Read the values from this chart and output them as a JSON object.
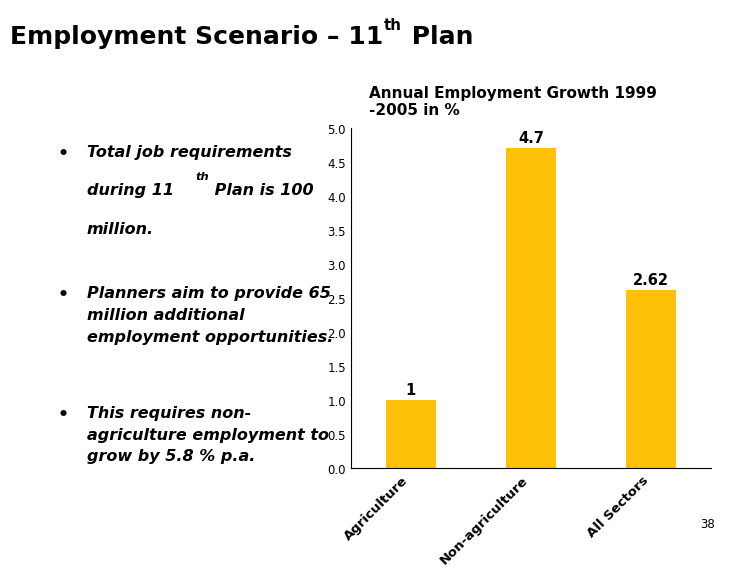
{
  "background_color": "#ffffff",
  "title_main": "Employment Scenario – 11",
  "title_sup": "th",
  "title_end": " Plan",
  "bar_categories": [
    "Agriculture",
    "Non-agriculture",
    "All Sectors"
  ],
  "bar_values": [
    1.0,
    4.7,
    2.62
  ],
  "bar_color": "#FFC107",
  "bar_labels": [
    "1",
    "4.7",
    "2.62"
  ],
  "chart_title_line1": "Annual Employment Growth 1999",
  "chart_title_line2": "-2005 in %",
  "ylim": [
    0,
    5
  ],
  "yticks": [
    0,
    0.5,
    1,
    1.5,
    2,
    2.5,
    3,
    3.5,
    4,
    4.5,
    5
  ],
  "page_number": "38",
  "bullet1_line1": "Total job requirements",
  "bullet1_line2_pre": "during 11",
  "bullet1_line2_sup": "th",
  "bullet1_line2_post": " Plan is 100",
  "bullet1_line3": "million.",
  "bullet2": "Planners aim to provide 65\nmillion additional\nemployment opportunities.",
  "bullet3": "This requires non-\nagriculture employment to\ngrow by 5.8 % p.a.",
  "title_fontsize": 18,
  "bullet_fontsize": 11.5,
  "chart_title_fontsize": 11
}
